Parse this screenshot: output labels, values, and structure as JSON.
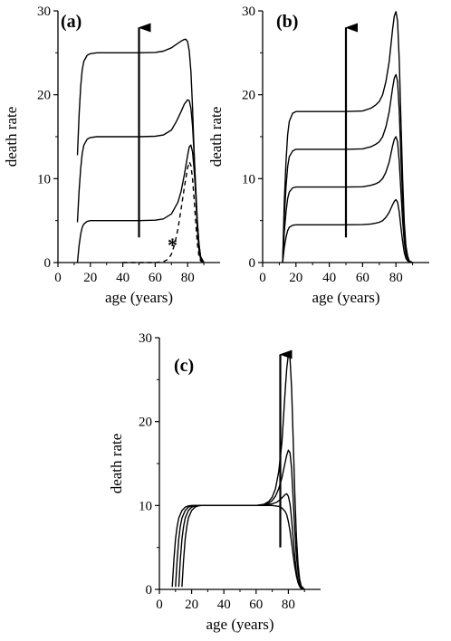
{
  "chart_data": [
    {
      "type": "line",
      "panel_label": "(a)",
      "xlabel": "age  (years)",
      "ylabel": "death  rate",
      "xlim": [
        0,
        100
      ],
      "ylim": [
        0,
        30
      ],
      "xticks": [
        0,
        20,
        40,
        60,
        80
      ],
      "yticks": [
        0,
        10,
        20,
        30
      ],
      "xtick_labels": [
        "0",
        "20",
        "40",
        "60",
        "80"
      ],
      "ytick_labels": [
        "0",
        "10",
        "20",
        "30"
      ],
      "grid": false,
      "series": [
        {
          "style": "dashed",
          "x": [
            40,
            50,
            60,
            65,
            68,
            70,
            72,
            74,
            76,
            78,
            80,
            81,
            82,
            83,
            84,
            85,
            86,
            87,
            88,
            90
          ],
          "y": [
            0,
            0,
            0,
            0.1,
            0.4,
            1,
            2.2,
            4,
            6.4,
            9,
            11.3,
            12,
            11.6,
            10,
            7.5,
            4.7,
            2.3,
            0.8,
            0.2,
            0
          ]
        },
        {
          "style": "solid",
          "x": [
            12,
            13,
            14,
            15,
            16,
            18,
            20,
            24,
            30,
            40,
            50,
            60,
            65,
            70,
            74,
            76,
            78,
            80,
            81,
            82,
            83,
            84,
            85,
            86,
            87,
            88,
            90
          ],
          "y": [
            0,
            2,
            3.4,
            4.2,
            4.6,
            4.9,
            5,
            5,
            5,
            5,
            5,
            5.05,
            5.2,
            5.8,
            7.2,
            8.5,
            10.5,
            12.8,
            13.8,
            14,
            13.2,
            11,
            8,
            4.8,
            2.2,
            0.7,
            0
          ]
        },
        {
          "style": "solid",
          "x": [
            12,
            13,
            14,
            15,
            16,
            18,
            20,
            24,
            30,
            40,
            50,
            60,
            65,
            70,
            73,
            76,
            78,
            80,
            81,
            82,
            83,
            84,
            85,
            86,
            87,
            88,
            90
          ],
          "y": [
            4.8,
            8.5,
            11.2,
            13,
            14,
            14.7,
            14.9,
            15,
            15,
            15,
            15,
            15.05,
            15.2,
            15.8,
            16.8,
            18,
            18.9,
            19.4,
            19.3,
            18.4,
            16.3,
            12.8,
            8.8,
            5,
            2.2,
            0.7,
            0
          ]
        },
        {
          "style": "solid",
          "x": [
            12,
            13,
            14,
            15,
            16,
            18,
            20,
            24,
            30,
            40,
            50,
            60,
            65,
            70,
            73,
            76,
            78,
            79,
            80,
            81,
            82,
            83,
            84,
            85,
            86,
            87,
            88,
            90
          ],
          "y": [
            12.8,
            17.5,
            21,
            23,
            24,
            24.7,
            24.9,
            25,
            25,
            25,
            25,
            25.05,
            25.2,
            25.6,
            26,
            26.4,
            26.6,
            26.6,
            26.3,
            25.2,
            22.8,
            18.5,
            13,
            8,
            4,
            1.5,
            0.4,
            0
          ]
        }
      ],
      "arrow": {
        "x": 50,
        "y_from": 3,
        "y_to": 28
      },
      "annotations": [
        "*"
      ]
    },
    {
      "type": "line",
      "panel_label": "(b)",
      "xlabel": "age  (years)",
      "ylabel": "death  rate",
      "xlim": [
        0,
        100
      ],
      "ylim": [
        0,
        30
      ],
      "xticks": [
        0,
        20,
        40,
        60,
        80
      ],
      "yticks": [
        0,
        10,
        20,
        30
      ],
      "xtick_labels": [
        "0",
        "20",
        "40",
        "60",
        "80"
      ],
      "ytick_labels": [
        "0",
        "10",
        "20",
        "30"
      ],
      "grid": false,
      "series": [
        {
          "style": "solid",
          "x": [
            12,
            13,
            14,
            15,
            16,
            18,
            20,
            25,
            30,
            40,
            50,
            60,
            65,
            68,
            70,
            72,
            74,
            76,
            78,
            79,
            80,
            81,
            82,
            83,
            84,
            85,
            86,
            87,
            88,
            90
          ],
          "y": [
            0,
            1.8,
            3,
            3.8,
            4.2,
            4.45,
            4.5,
            4.5,
            4.5,
            4.5,
            4.5,
            4.52,
            4.6,
            4.7,
            4.8,
            5,
            5.4,
            6,
            6.9,
            7.3,
            7.5,
            7.2,
            6,
            4.2,
            2.5,
            1.2,
            0.5,
            0.2,
            0.05,
            0
          ]
        },
        {
          "style": "solid",
          "x": [
            12,
            13,
            14,
            15,
            16,
            18,
            20,
            25,
            30,
            40,
            50,
            60,
            65,
            68,
            70,
            72,
            74,
            76,
            78,
            79,
            80,
            81,
            82,
            83,
            84,
            85,
            86,
            87,
            88,
            90
          ],
          "y": [
            0,
            3.6,
            6,
            7.6,
            8.4,
            8.9,
            9,
            9,
            9,
            9,
            9,
            9.03,
            9.2,
            9.4,
            9.6,
            10,
            10.8,
            12,
            13.9,
            14.7,
            15,
            14.4,
            12,
            8.5,
            5,
            2.4,
            1,
            0.4,
            0.1,
            0
          ]
        },
        {
          "style": "solid",
          "x": [
            12,
            13,
            14,
            15,
            16,
            18,
            20,
            25,
            30,
            40,
            50,
            60,
            65,
            68,
            70,
            72,
            74,
            76,
            78,
            79,
            80,
            81,
            82,
            83,
            84,
            85,
            86,
            87,
            88,
            90
          ],
          "y": [
            0,
            5.4,
            9,
            11.4,
            12.6,
            13.3,
            13.5,
            13.5,
            13.5,
            13.5,
            13.5,
            13.55,
            13.8,
            14.1,
            14.4,
            15,
            16.2,
            18,
            20.8,
            22,
            22.4,
            21.6,
            18,
            12.7,
            7.5,
            3.6,
            1.5,
            0.6,
            0.15,
            0
          ]
        },
        {
          "style": "solid",
          "x": [
            12,
            13,
            14,
            15,
            16,
            18,
            20,
            25,
            30,
            40,
            50,
            60,
            65,
            68,
            70,
            72,
            74,
            76,
            78,
            79,
            80,
            81,
            82,
            83,
            84,
            85,
            86,
            87,
            88,
            90
          ],
          "y": [
            0,
            7.2,
            12,
            15.2,
            16.8,
            17.8,
            18,
            18,
            18,
            18,
            18,
            18.06,
            18.4,
            18.8,
            19.2,
            20,
            21.6,
            24,
            27.8,
            29.4,
            29.9,
            28.8,
            24,
            17,
            10,
            4.8,
            2,
            0.8,
            0.2,
            0
          ]
        }
      ],
      "arrow": {
        "x": 50,
        "y_from": 3,
        "y_to": 28
      }
    },
    {
      "type": "line",
      "panel_label": "(c)",
      "xlabel": "age  (years)",
      "ylabel": "death  rate",
      "xlim": [
        0,
        100
      ],
      "ylim": [
        0,
        30
      ],
      "xticks": [
        0,
        20,
        40,
        60,
        80
      ],
      "yticks": [
        0,
        10,
        20,
        30
      ],
      "xtick_labels": [
        "0",
        "20",
        "40",
        "60",
        "80"
      ],
      "ytick_labels": [
        "0",
        "10",
        "20",
        "30"
      ],
      "grid": false,
      "series": [
        {
          "style": "solid",
          "x": [
            8,
            9,
            10,
            11,
            12,
            14,
            16,
            18,
            20,
            25,
            30,
            40,
            50,
            60,
            65,
            70,
            74,
            76,
            78,
            79,
            80,
            81,
            82,
            83,
            84,
            85,
            86,
            87,
            88,
            90
          ],
          "y": [
            0.3,
            3.5,
            6,
            7.5,
            8.5,
            9.4,
            9.8,
            9.95,
            10,
            10,
            10,
            10,
            10,
            10,
            10,
            10,
            9.9,
            9.7,
            9.3,
            8.9,
            8.1,
            7,
            5.6,
            4.1,
            2.7,
            1.6,
            0.8,
            0.35,
            0.1,
            0
          ]
        },
        {
          "style": "solid",
          "x": [
            10,
            11,
            12,
            13,
            14,
            16,
            18,
            20,
            22,
            25,
            30,
            40,
            50,
            60,
            65,
            70,
            73,
            75,
            77,
            78,
            79,
            80,
            81,
            82,
            83,
            84,
            85,
            86,
            87,
            88,
            90
          ],
          "y": [
            0.3,
            3.5,
            6,
            7.5,
            8.5,
            9.4,
            9.8,
            9.95,
            10,
            10,
            10,
            10,
            10,
            10,
            10.05,
            10.2,
            10.4,
            10.7,
            11.1,
            11.3,
            11.4,
            11.1,
            10.2,
            8.4,
            6.1,
            3.9,
            2.1,
            1,
            0.4,
            0.1,
            0
          ]
        },
        {
          "style": "solid",
          "x": [
            12,
            13,
            14,
            15,
            16,
            18,
            20,
            22,
            24,
            30,
            40,
            50,
            60,
            65,
            68,
            70,
            72,
            74,
            76,
            78,
            79,
            80,
            81,
            82,
            83,
            84,
            85,
            86,
            87,
            88,
            90
          ],
          "y": [
            0.3,
            3.5,
            6,
            7.5,
            8.5,
            9.4,
            9.8,
            9.95,
            10,
            10,
            10,
            10,
            10,
            10.1,
            10.3,
            10.6,
            11.1,
            12,
            13.3,
            15.1,
            16,
            16.6,
            16.3,
            14.4,
            10.8,
            7,
            4,
            2,
            0.8,
            0.25,
            0
          ]
        },
        {
          "style": "solid",
          "x": [
            14,
            15,
            16,
            17,
            18,
            20,
            22,
            24,
            26,
            30,
            40,
            50,
            60,
            65,
            68,
            70,
            72,
            74,
            76,
            78,
            79,
            80,
            81,
            82,
            83,
            84,
            85,
            86,
            87,
            88,
            90
          ],
          "y": [
            0.3,
            3.5,
            6,
            7.5,
            8.5,
            9.4,
            9.8,
            9.95,
            10,
            10,
            10,
            10,
            10,
            10.15,
            10.5,
            11,
            12,
            14,
            17.5,
            23.5,
            26.3,
            28,
            27.6,
            24,
            18,
            11.5,
            6.3,
            3,
            1.2,
            0.4,
            0
          ]
        }
      ],
      "arrow": {
        "x": 75,
        "y_from": 5,
        "y_to": 28
      }
    }
  ]
}
